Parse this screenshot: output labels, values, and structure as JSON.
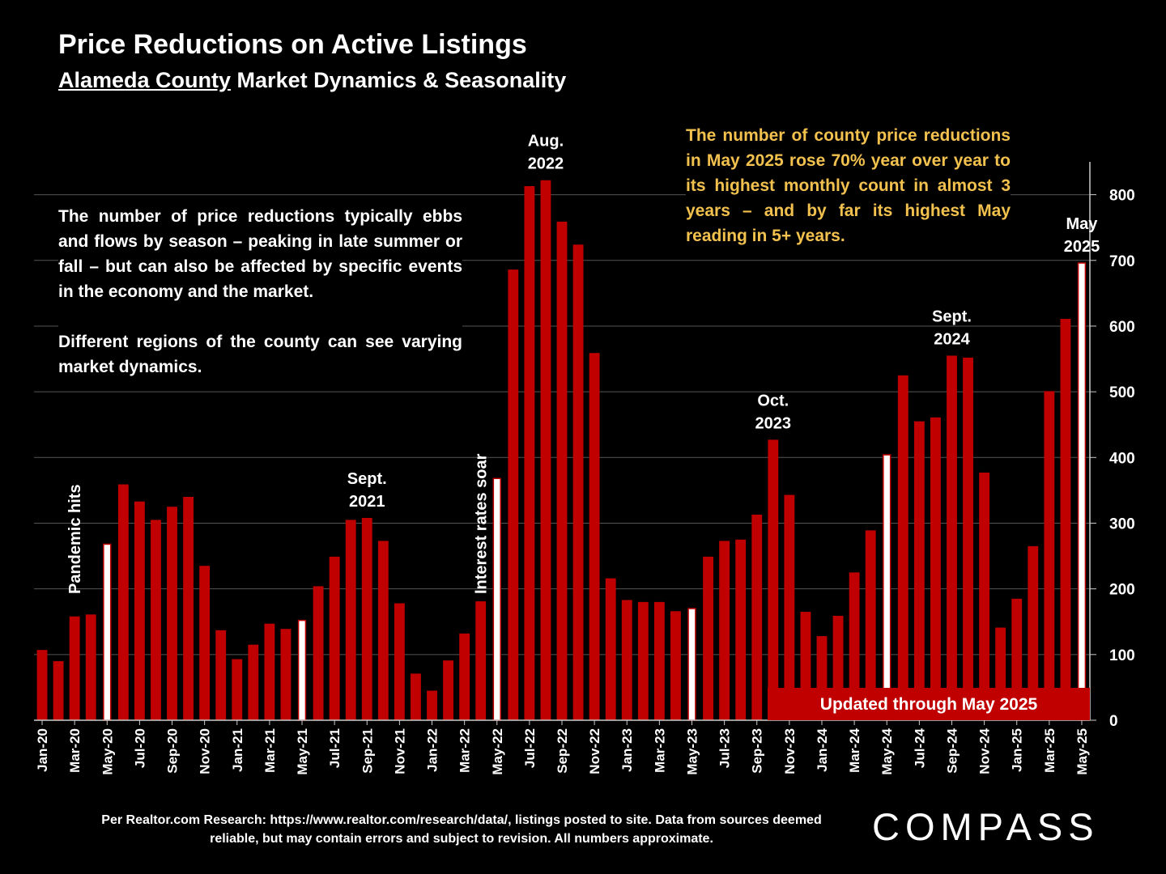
{
  "title": "Price Reductions on Active Listings",
  "subtitle": {
    "underlined": "Alameda County",
    "rest": " Market Dynamics & Seasonality"
  },
  "left_note": {
    "p1": "The number of price reductions typically ebbs and flows by season – peaking in late summer or fall – but can also be affected by specific events in the economy and the market.",
    "p2": "Different regions of the county can see varying market dynamics."
  },
  "right_note": "The number of county price reductions in May 2025 rose 70% year over year to its highest monthly count in almost 3 years – and by far its highest May reading in 5+ years.",
  "source": "Per Realtor.com Research:  https://www.realtor.com/research/data/, listings posted to site. Data from sources deemed reliable, but may contain errors and subject to revision. All numbers approximate.",
  "logo": "COMPASS",
  "colors": {
    "bar": "#c00000",
    "highlight_bar": "#ffffff",
    "background": "#000000",
    "note": "#f2c14e",
    "banner": "#c00000"
  },
  "chart_data": {
    "type": "bar",
    "ylim": [
      0,
      850
    ],
    "yticks": [
      0,
      100,
      200,
      300,
      400,
      500,
      600,
      700,
      800
    ],
    "grid": true,
    "y_axis_side": "right",
    "categories": [
      "Jan-20",
      "Feb-20",
      "Mar-20",
      "Apr-20",
      "May-20",
      "Jun-20",
      "Jul-20",
      "Aug-20",
      "Sep-20",
      "Oct-20",
      "Nov-20",
      "Dec-20",
      "Jan-21",
      "Feb-21",
      "Mar-21",
      "Apr-21",
      "May-21",
      "Jun-21",
      "Jul-21",
      "Aug-21",
      "Sep-21",
      "Oct-21",
      "Nov-21",
      "Dec-21",
      "Jan-22",
      "Feb-22",
      "Mar-22",
      "Apr-22",
      "May-22",
      "Jun-22",
      "Jul-22",
      "Aug-22",
      "Sep-22",
      "Oct-22",
      "Nov-22",
      "Dec-22",
      "Jan-23",
      "Feb-23",
      "Mar-23",
      "Apr-23",
      "May-23",
      "Jun-23",
      "Jul-23",
      "Aug-23",
      "Sep-23",
      "Oct-23",
      "Nov-23",
      "Dec-23",
      "Jan-24",
      "Feb-24",
      "Mar-24",
      "Apr-24",
      "May-24",
      "Jun-24",
      "Jul-24",
      "Aug-24",
      "Sep-24",
      "Oct-24",
      "Nov-24",
      "Dec-24",
      "Jan-25",
      "Feb-25",
      "Mar-25",
      "Apr-25",
      "May-25"
    ],
    "values": [
      107,
      90,
      158,
      161,
      268,
      359,
      333,
      305,
      325,
      340,
      235,
      137,
      93,
      115,
      147,
      139,
      152,
      204,
      249,
      305,
      308,
      273,
      178,
      71,
      45,
      91,
      132,
      181,
      368,
      686,
      813,
      822,
      759,
      724,
      559,
      216,
      183,
      180,
      180,
      166,
      170,
      249,
      273,
      275,
      313,
      427,
      343,
      165,
      128,
      159,
      225,
      289,
      404,
      525,
      455,
      461,
      555,
      552,
      377,
      141,
      185,
      265,
      501,
      611,
      696
    ],
    "highlighted": [
      "May-20",
      "May-21",
      "May-22",
      "May-23",
      "May-24",
      "May-25"
    ],
    "xtick_labels": [
      "Jan-20",
      "Mar-20",
      "May-20",
      "Jul-20",
      "Sep-20",
      "Nov-20",
      "Jan-21",
      "Mar-21",
      "May-21",
      "Jul-21",
      "Sep-21",
      "Nov-21",
      "Jan-22",
      "Mar-22",
      "May-22",
      "Jul-22",
      "Sep-22",
      "Nov-22",
      "Jan-23",
      "Mar-23",
      "May-23",
      "Jul-23",
      "Sep-23",
      "Nov-23",
      "Jan-24",
      "Mar-24",
      "May-24",
      "Jul-24",
      "Sep-24",
      "Nov-24",
      "Jan-25",
      "Mar-25",
      "May-25"
    ],
    "annotations": [
      {
        "target": "Mar-20",
        "text": "Pandemic hits",
        "rotated": true
      },
      {
        "target": "Apr-22",
        "text": "Interest rates soar",
        "rotated": true
      },
      {
        "target": "Sep-21",
        "lines": [
          "Sept.",
          "2021"
        ]
      },
      {
        "target": "Aug-22",
        "lines": [
          "Aug.",
          "2022"
        ]
      },
      {
        "target": "Oct-23",
        "lines": [
          "Oct.",
          "2023"
        ]
      },
      {
        "target": "Sep-24",
        "lines": [
          "Sept.",
          "2024"
        ]
      },
      {
        "target": "May-25",
        "lines": [
          "May",
          "2025"
        ]
      }
    ],
    "banner": "Updated through May 2025"
  }
}
